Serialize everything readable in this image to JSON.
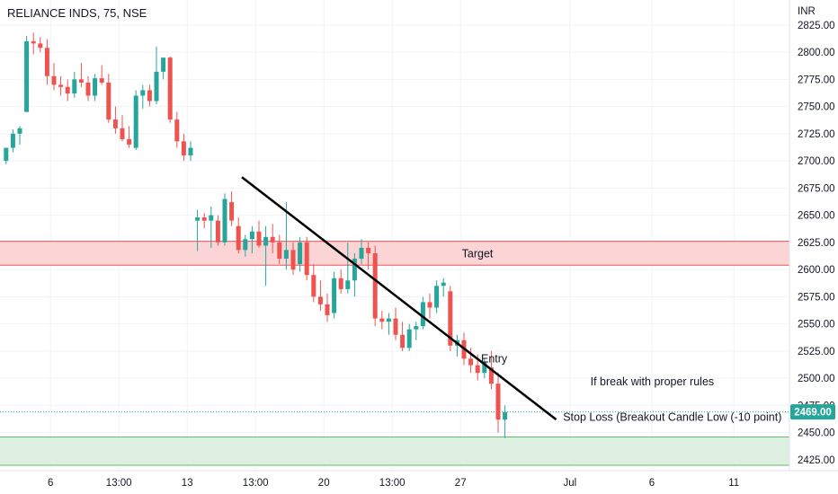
{
  "chart_data": {
    "type": "candlestick",
    "title": "RELIANCE INDS, 75, NSE",
    "currency": "INR",
    "ylim": [
      2415,
      2848
    ],
    "y_ticks": [
      2425,
      2450,
      2475,
      2500,
      2525,
      2550,
      2575,
      2600,
      2625,
      2650,
      2675,
      2700,
      2725,
      2750,
      2775,
      2800,
      2825
    ],
    "y_tick_labels": [
      "2425.00",
      "2450.00",
      "2475.00",
      "2500.00",
      "2525.00",
      "2550.00",
      "2575.00",
      "2600.00",
      "2625.00",
      "2650.00",
      "2675.00",
      "2700.00",
      "2725.00",
      "2750.00",
      "2775.00",
      "2800.00",
      "2825.00"
    ],
    "x_ticks": [
      {
        "label": "6",
        "bar": 7
      },
      {
        "label": "13:00",
        "bar": 17
      },
      {
        "label": "13",
        "bar": 27
      },
      {
        "label": "13:00",
        "bar": 37
      },
      {
        "label": "20",
        "bar": 47
      },
      {
        "label": "13:00",
        "bar": 57
      },
      {
        "label": "27",
        "bar": 67
      },
      {
        "label": "Jul",
        "bar": 83
      },
      {
        "label": "6",
        "bar": 95
      },
      {
        "label": "11",
        "bar": 107
      }
    ],
    "grid": true,
    "up_color": "#26a69a",
    "down_color": "#ef5350",
    "candles": [
      [
        2700,
        2712,
        2697,
        2712
      ],
      [
        2712,
        2729,
        2708,
        2725
      ],
      [
        2725,
        2732,
        2715,
        2730
      ],
      [
        2745,
        2815,
        2745,
        2810
      ],
      [
        2810,
        2818,
        2798,
        2808
      ],
      [
        2808,
        2814,
        2800,
        2804
      ],
      [
        2804,
        2812,
        2770,
        2778
      ],
      [
        2778,
        2790,
        2765,
        2770
      ],
      [
        2770,
        2778,
        2760,
        2768
      ],
      [
        2768,
        2775,
        2755,
        2762
      ],
      [
        2762,
        2782,
        2758,
        2775
      ],
      [
        2775,
        2790,
        2768,
        2772
      ],
      [
        2772,
        2778,
        2755,
        2760
      ],
      [
        2760,
        2780,
        2755,
        2776
      ],
      [
        2776,
        2788,
        2770,
        2772
      ],
      [
        2772,
        2780,
        2735,
        2738
      ],
      [
        2738,
        2750,
        2725,
        2730
      ],
      [
        2730,
        2742,
        2718,
        2720
      ],
      [
        2720,
        2732,
        2712,
        2715
      ],
      [
        2712,
        2765,
        2710,
        2760
      ],
      [
        2760,
        2770,
        2748,
        2765
      ],
      [
        2765,
        2770,
        2750,
        2755
      ],
      [
        2755,
        2805,
        2752,
        2782
      ],
      [
        2782,
        2795,
        2775,
        2795
      ],
      [
        2795,
        2796,
        2735,
        2738
      ],
      [
        2738,
        2745,
        2712,
        2718
      ],
      [
        2718,
        2725,
        2700,
        2705
      ],
      [
        2705,
        2718,
        2700,
        2712
      ],
      [
        2645,
        2655,
        2617,
        2648
      ],
      [
        2648,
        2652,
        2638,
        2645
      ],
      [
        2645,
        2658,
        2620,
        2650
      ],
      [
        2645,
        2650,
        2622,
        2625
      ],
      [
        2625,
        2670,
        2622,
        2665
      ],
      [
        2662,
        2672,
        2640,
        2645
      ],
      [
        2640,
        2648,
        2615,
        2618
      ],
      [
        2618,
        2632,
        2612,
        2628
      ],
      [
        2628,
        2640,
        2615,
        2635
      ],
      [
        2635,
        2645,
        2620,
        2622
      ],
      [
        2622,
        2640,
        2585,
        2630
      ],
      [
        2630,
        2642,
        2615,
        2625
      ],
      [
        2625,
        2632,
        2605,
        2610
      ],
      [
        2610,
        2662,
        2600,
        2618
      ],
      [
        2618,
        2625,
        2595,
        2600
      ],
      [
        2605,
        2630,
        2598,
        2625
      ],
      [
        2625,
        2630,
        2590,
        2595
      ],
      [
        2595,
        2605,
        2570,
        2575
      ],
      [
        2575,
        2590,
        2562,
        2568
      ],
      [
        2568,
        2578,
        2552,
        2558
      ],
      [
        2560,
        2598,
        2555,
        2592
      ],
      [
        2592,
        2600,
        2578,
        2582
      ],
      [
        2582,
        2625,
        2578,
        2590
      ],
      [
        2590,
        2615,
        2575,
        2610
      ],
      [
        2610,
        2628,
        2605,
        2620
      ],
      [
        2620,
        2625,
        2600,
        2615
      ],
      [
        2615,
        2622,
        2548,
        2555
      ],
      [
        2555,
        2562,
        2545,
        2552
      ],
      [
        2552,
        2560,
        2540,
        2555
      ],
      [
        2555,
        2565,
        2535,
        2540
      ],
      [
        2540,
        2552,
        2525,
        2528
      ],
      [
        2528,
        2550,
        2525,
        2545
      ],
      [
        2545,
        2552,
        2535,
        2548
      ],
      [
        2548,
        2575,
        2545,
        2570
      ],
      [
        2570,
        2578,
        2555,
        2565
      ],
      [
        2565,
        2590,
        2560,
        2585
      ],
      [
        2585,
        2592,
        2575,
        2588
      ],
      [
        2580,
        2585,
        2525,
        2530
      ],
      [
        2530,
        2540,
        2520,
        2535
      ],
      [
        2535,
        2542,
        2512,
        2518
      ],
      [
        2518,
        2528,
        2505,
        2512
      ],
      [
        2512,
        2522,
        2498,
        2505
      ],
      [
        2505,
        2518,
        2500,
        2515
      ],
      [
        2510,
        2525,
        2490,
        2495
      ],
      [
        2495,
        2505,
        2450,
        2462
      ],
      [
        2462,
        2475,
        2445,
        2469
      ]
    ],
    "trendline": {
      "from": [
        2685,
        35
      ],
      "to": [
        2462,
        81
      ]
    },
    "zones": [
      {
        "name": "target",
        "label": "Target",
        "top": 2626,
        "bottom": 2604,
        "fill": "#fbd5d6",
        "stroke": "#ef5350"
      },
      {
        "name": "stop",
        "label": "",
        "top": 2446,
        "bottom": 2420,
        "fill": "#dcefe0",
        "stroke": "#66bb6a"
      }
    ],
    "annotations": [
      {
        "name": "entry",
        "text": "Entry",
        "price": 2518,
        "bar": 70
      },
      {
        "name": "condition",
        "text": "If break with proper rules",
        "price": 2497,
        "bar": 86
      },
      {
        "name": "stoploss",
        "text": "Stop Loss (Breakout Candle Low (-10 point)",
        "price": 2464,
        "bar": 82
      }
    ],
    "last_price": 2469,
    "last_price_label": "2469.00",
    "last_price_color": "#26a69a"
  }
}
